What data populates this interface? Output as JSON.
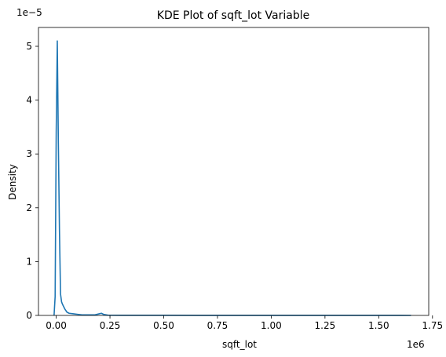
{
  "chart_data": {
    "type": "line",
    "title": "KDE Plot of sqft_lot Variable",
    "xlabel": "sqft_lot",
    "ylabel": "Density",
    "x_scale_note": "1e6",
    "y_scale_note": "1e−5",
    "xlim": [
      -0.0825,
      1.7325
    ],
    "ylim": [
      0,
      5.35
    ],
    "x_ticks": [
      0.0,
      0.25,
      0.5,
      0.75,
      1.0,
      1.25,
      1.5,
      1.75
    ],
    "x_tick_labels": [
      "0.00",
      "0.25",
      "0.50",
      "0.75",
      "1.00",
      "1.25",
      "1.50",
      "1.75"
    ],
    "y_ticks": [
      0,
      1,
      2,
      3,
      4,
      5
    ],
    "y_tick_labels": [
      "0",
      "1",
      "2",
      "3",
      "4",
      "5"
    ],
    "grid": false,
    "line_color": "#1f77b4",
    "series": [
      {
        "x": [
          -0.01,
          -0.005,
          0.0,
          0.005,
          0.01,
          0.015,
          0.02,
          0.025,
          0.03,
          0.04,
          0.05,
          0.06,
          0.08,
          0.1,
          0.12,
          0.15,
          0.18,
          0.2,
          0.21,
          0.22,
          0.24,
          0.3,
          0.5,
          0.75,
          1.0,
          1.25,
          1.5,
          1.65
        ],
        "y": [
          0.0,
          0.35,
          3.4,
          5.1,
          3.2,
          1.6,
          0.4,
          0.25,
          0.2,
          0.12,
          0.06,
          0.04,
          0.03,
          0.02,
          0.01,
          0.01,
          0.01,
          0.03,
          0.04,
          0.02,
          0.005,
          0.003,
          0.002,
          0.001,
          0.001,
          0.001,
          0.001,
          0.0
        ]
      }
    ]
  }
}
